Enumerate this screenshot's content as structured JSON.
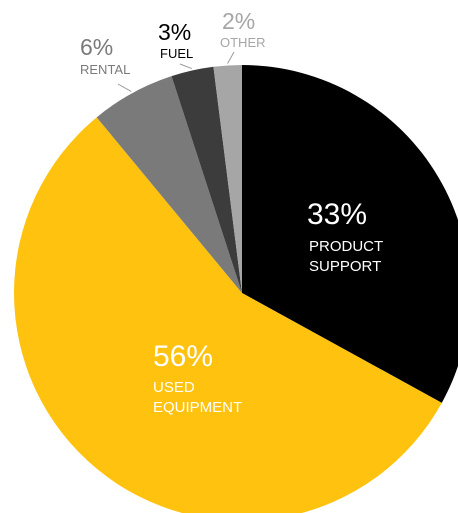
{
  "chart_data": {
    "type": "pie",
    "start_angle": "12 o'clock",
    "direction": "clockwise",
    "slices": [
      {
        "key": "product_support",
        "pct_label": "33%",
        "label_lines": [
          "PRODUCT",
          "SUPPORT"
        ],
        "value": 33,
        "color": "#000000",
        "text_color": "#ffffff"
      },
      {
        "key": "used_equipment",
        "pct_label": "56%",
        "label_lines": [
          "USED",
          "EQUIPMENT"
        ],
        "value": 56,
        "color": "#ffc20e",
        "text_color": "#ffffff"
      },
      {
        "key": "rental",
        "pct_label": "6%",
        "label_lines": [
          "RENTAL"
        ],
        "value": 6,
        "color": "#7a7a7a",
        "text_color": "#7a7a7a"
      },
      {
        "key": "fuel",
        "pct_label": "3%",
        "label_lines": [
          "FUEL"
        ],
        "value": 3,
        "color": "#3c3c3c",
        "text_color": "#000000"
      },
      {
        "key": "other",
        "pct_label": "2%",
        "label_lines": [
          "OTHER"
        ],
        "value": 2,
        "color": "#a6a6a6",
        "text_color": "#a6a6a6"
      }
    ]
  }
}
